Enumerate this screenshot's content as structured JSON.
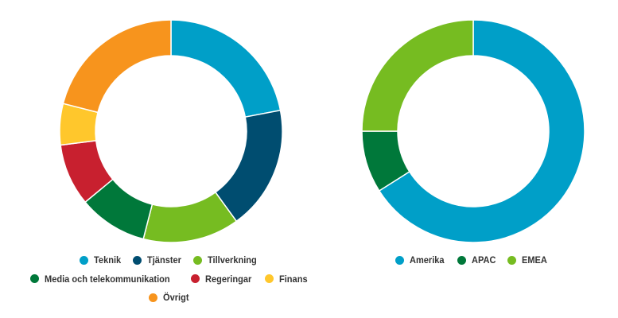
{
  "chart_data": [
    {
      "type": "pie",
      "hole": true,
      "series": [
        {
          "name": "Teknik",
          "value": 22,
          "color": "#009FC8"
        },
        {
          "name": "Tjänster",
          "value": 18,
          "color": "#004D70"
        },
        {
          "name": "Tillverkning",
          "value": 14,
          "color": "#76BC21"
        },
        {
          "name": "Media och telekommunikation",
          "value": 10,
          "color": "#00783A"
        },
        {
          "name": "Regeringar",
          "value": 9,
          "color": "#C8202F"
        },
        {
          "name": "Finans",
          "value": 6,
          "color": "#FFC72C"
        },
        {
          "name": "Övrigt",
          "value": 21,
          "color": "#F7941D"
        }
      ],
      "legend_rows": [
        [
          0,
          1,
          2
        ],
        [
          3,
          4,
          5
        ],
        [
          6
        ]
      ],
      "legend": "bottom"
    },
    {
      "type": "pie",
      "hole": true,
      "series": [
        {
          "name": "Amerika",
          "value": 66,
          "color": "#009FC8"
        },
        {
          "name": "APAC",
          "value": 9,
          "color": "#00783A"
        },
        {
          "name": "EMEA",
          "value": 25,
          "color": "#76BC21"
        }
      ],
      "legend_rows": [
        [
          0,
          1,
          2
        ]
      ],
      "legend": "bottom"
    }
  ]
}
